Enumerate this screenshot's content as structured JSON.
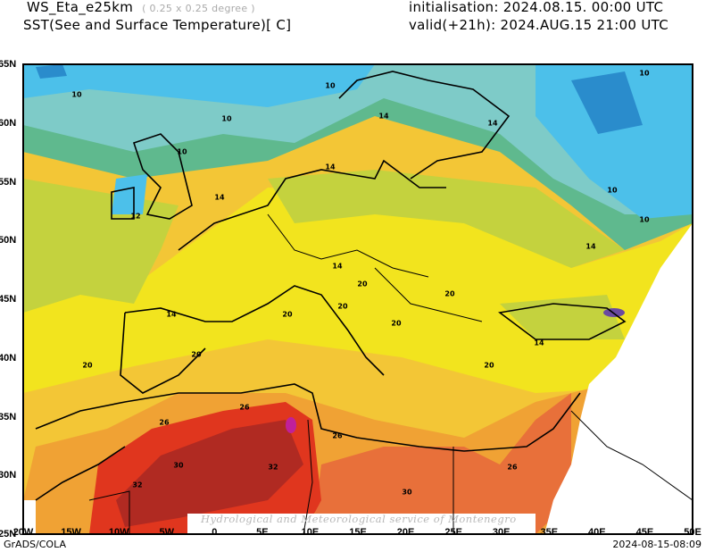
{
  "header": {
    "model": "WS_Eta_e25km",
    "resolution": "( 0.25 x 0.25 degree )",
    "field": "SST(See and Surface Temperature)[ C]",
    "initialisation": "initialisation: 2024.08.15. 00:00 UTC",
    "valid": "valid(+21h): 2024.AUG.15 21:00 UTC"
  },
  "axes": {
    "lon": [
      "20W",
      "15W",
      "10W",
      "5W",
      "0",
      "5E",
      "10E",
      "15E",
      "20E",
      "25E",
      "30E",
      "35E",
      "40E",
      "45E",
      "50E"
    ],
    "lat": [
      "65N",
      "60N",
      "55N",
      "50N",
      "45N",
      "40N",
      "35N",
      "30N",
      "25N"
    ]
  },
  "contour_labels": [
    "10",
    "10",
    "10",
    "10",
    "10",
    "10",
    "14",
    "14",
    "14",
    "14",
    "14",
    "14",
    "14",
    "14",
    "20",
    "20",
    "20",
    "20",
    "20",
    "20",
    "20",
    "20",
    "26",
    "26",
    "26",
    "26",
    "30",
    "30",
    "32",
    "32",
    "12",
    "10"
  ],
  "watermark": "Hydrological and Meteorological service of Montenegro",
  "footer": {
    "left": "GrADS/COLA",
    "right": "2024-08-15-08:09"
  },
  "colors": {
    "deep_blue": "#2a8ccc",
    "blue": "#4cc0ea",
    "teal": "#7ecbc8",
    "green": "#5fb98e",
    "yellowgreen": "#c4d23e",
    "yellow": "#f2e41e",
    "lightorange": "#f3c636",
    "orange": "#f0a234",
    "darkorange": "#e8703a",
    "red": "#e0361e",
    "darkred": "#b02a22",
    "magenta": "#c0209a"
  }
}
